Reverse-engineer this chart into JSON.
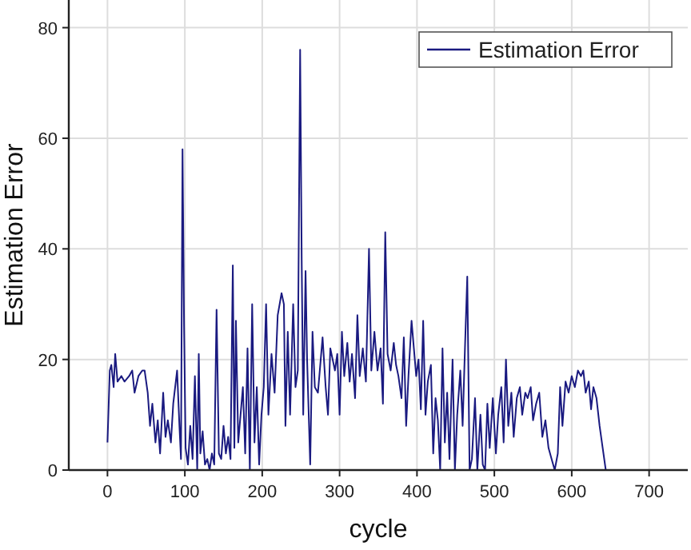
{
  "chart_data": {
    "type": "line",
    "xlabel": "cycle",
    "ylabel": "Estimation Error",
    "xlim": [
      -50,
      750
    ],
    "ylim": [
      0,
      85
    ],
    "xticks": [
      0,
      100,
      200,
      300,
      400,
      500,
      600,
      700
    ],
    "yticks": [
      0,
      20,
      40,
      60,
      80
    ],
    "grid": true,
    "legend": "top right",
    "line_style": "solid",
    "marker": "none",
    "series": [
      {
        "name": "Estimation Error",
        "color": "#1a1a80",
        "x": [
          0,
          3,
          5,
          8,
          10,
          13,
          18,
          22,
          28,
          32,
          35,
          40,
          45,
          48,
          52,
          55,
          58,
          62,
          65,
          68,
          72,
          75,
          78,
          82,
          85,
          90,
          93,
          95,
          97,
          99,
          101,
          104,
          107,
          110,
          113,
          116,
          118,
          120,
          123,
          126,
          129,
          132,
          135,
          138,
          141,
          144,
          147,
          150,
          153,
          156,
          159,
          162,
          164,
          166,
          169,
          172,
          175,
          178,
          181,
          184,
          187,
          190,
          193,
          196,
          199,
          202,
          205,
          208,
          212,
          216,
          220,
          225,
          228,
          230,
          233,
          236,
          240,
          243,
          246,
          249,
          251,
          253,
          256,
          258,
          262,
          265,
          268,
          272,
          275,
          278,
          282,
          285,
          288,
          291,
          294,
          297,
          300,
          303,
          306,
          310,
          313,
          316,
          320,
          323,
          326,
          330,
          334,
          338,
          341,
          345,
          349,
          353,
          356,
          359,
          362,
          366,
          370,
          373,
          376,
          380,
          383,
          386,
          389,
          393,
          396,
          399,
          402,
          405,
          408,
          411,
          414,
          418,
          421,
          424,
          427,
          430,
          433,
          436,
          439,
          442,
          446,
          449,
          452,
          456,
          459,
          462,
          465,
          468,
          471,
          475,
          478,
          482,
          485,
          488,
          491,
          494,
          498,
          502,
          505,
          509,
          512,
          515,
          518,
          522,
          525,
          529,
          533,
          536,
          540,
          543,
          547,
          550,
          554,
          558,
          562,
          566,
          570,
          574,
          578,
          582,
          585,
          588,
          592,
          596,
          600,
          604,
          608,
          612,
          615,
          618,
          622,
          625,
          628,
          632,
          636,
          640,
          644
        ],
        "values": [
          5,
          18,
          19,
          15,
          21,
          16,
          17,
          16,
          17,
          18,
          14,
          17,
          18,
          18,
          14,
          8,
          12,
          5,
          9,
          3,
          14,
          6,
          9,
          5,
          12,
          18,
          8,
          2,
          58,
          26,
          4,
          1,
          8,
          2,
          17,
          0,
          21,
          3,
          7,
          1,
          2,
          0,
          3,
          1,
          29,
          3,
          2,
          8,
          3,
          6,
          2,
          37,
          4,
          27,
          5,
          10,
          15,
          3,
          22,
          0,
          30,
          5,
          15,
          1,
          10,
          15,
          30,
          10,
          21,
          14,
          28,
          32,
          30,
          8,
          25,
          10,
          30,
          15,
          18,
          76,
          38,
          10,
          36,
          20,
          1,
          25,
          15,
          14,
          19,
          24,
          15,
          10,
          22,
          20,
          18,
          21,
          10,
          25,
          17,
          23,
          16,
          21,
          13,
          28,
          17,
          22,
          16,
          40,
          18,
          25,
          18,
          22,
          12,
          43,
          21,
          18,
          23,
          19,
          17,
          13,
          24,
          8,
          17,
          27,
          22,
          17,
          20,
          11,
          27,
          10,
          16,
          19,
          3,
          13,
          9,
          0,
          22,
          5,
          14,
          2,
          20,
          0,
          10,
          18,
          8,
          22,
          35,
          0,
          2,
          13,
          0,
          10,
          1,
          0,
          12,
          4,
          13,
          3,
          10,
          15,
          5,
          20,
          8,
          14,
          6,
          13,
          15,
          10,
          14,
          13,
          15,
          9,
          12,
          14,
          6,
          9,
          4,
          2,
          0,
          3,
          15,
          8,
          16,
          14,
          17,
          15,
          18,
          17,
          18,
          14,
          16,
          11,
          15,
          13,
          8,
          4,
          0
        ]
      }
    ]
  }
}
